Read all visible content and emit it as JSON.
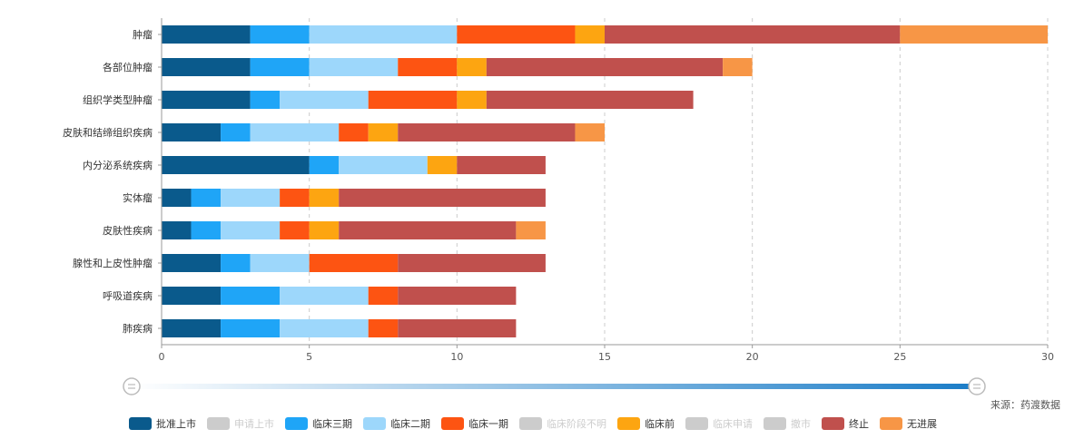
{
  "source_note": "来源：药渡数据",
  "chart_data": {
    "type": "bar",
    "orientation": "horizontal",
    "stacked": true,
    "categories": [
      "肿瘤",
      "各部位肿瘤",
      "组织学类型肿瘤",
      "皮肤和结缔组织疾病",
      "内分泌系统疾病",
      "实体瘤",
      "皮肤性疾病",
      "腺性和上皮性肿瘤",
      "呼吸道疾病",
      "肺疾病"
    ],
    "xlim": [
      0,
      30
    ],
    "xticks": [
      0,
      5,
      10,
      15,
      20,
      25,
      30
    ],
    "grid": "vertical-dashed",
    "legend_position": "bottom",
    "series": [
      {
        "name": "批准上市",
        "color": "#0a5a8c",
        "active": true,
        "values": [
          3,
          3,
          3,
          2,
          5,
          1,
          1,
          2,
          2,
          2
        ]
      },
      {
        "name": "申请上市",
        "color": "#cccccc",
        "active": false,
        "values": [
          0,
          0,
          0,
          0,
          0,
          0,
          0,
          0,
          0,
          0
        ]
      },
      {
        "name": "临床三期",
        "color": "#1fa5f7",
        "active": true,
        "values": [
          2,
          2,
          1,
          1,
          1,
          1,
          1,
          1,
          2,
          2
        ]
      },
      {
        "name": "临床二期",
        "color": "#9dd7fb",
        "active": true,
        "values": [
          5,
          3,
          3,
          3,
          3,
          2,
          2,
          2,
          3,
          3
        ]
      },
      {
        "name": "临床一期",
        "color": "#fd5412",
        "active": true,
        "values": [
          4,
          2,
          3,
          1,
          0,
          1,
          1,
          3,
          1,
          1
        ]
      },
      {
        "name": "临床阶段不明",
        "color": "#cccccc",
        "active": false,
        "values": [
          0,
          0,
          0,
          0,
          0,
          0,
          0,
          0,
          0,
          0
        ]
      },
      {
        "name": "临床前",
        "color": "#fda511",
        "active": true,
        "values": [
          1,
          1,
          1,
          1,
          1,
          1,
          1,
          0,
          0,
          0
        ]
      },
      {
        "name": "临床申请",
        "color": "#cccccc",
        "active": false,
        "values": [
          0,
          0,
          0,
          0,
          0,
          0,
          0,
          0,
          0,
          0
        ]
      },
      {
        "name": "撤市",
        "color": "#cccccc",
        "active": false,
        "values": [
          0,
          0,
          0,
          0,
          0,
          0,
          0,
          0,
          0,
          0
        ]
      },
      {
        "name": "终止",
        "color": "#c0504d",
        "active": true,
        "values": [
          10,
          8,
          7,
          6,
          3,
          7,
          6,
          5,
          4,
          4
        ]
      },
      {
        "name": "无进展",
        "color": "#f79646",
        "active": true,
        "values": [
          5,
          1,
          0,
          1,
          0,
          0,
          1,
          0,
          0,
          0
        ]
      }
    ]
  }
}
